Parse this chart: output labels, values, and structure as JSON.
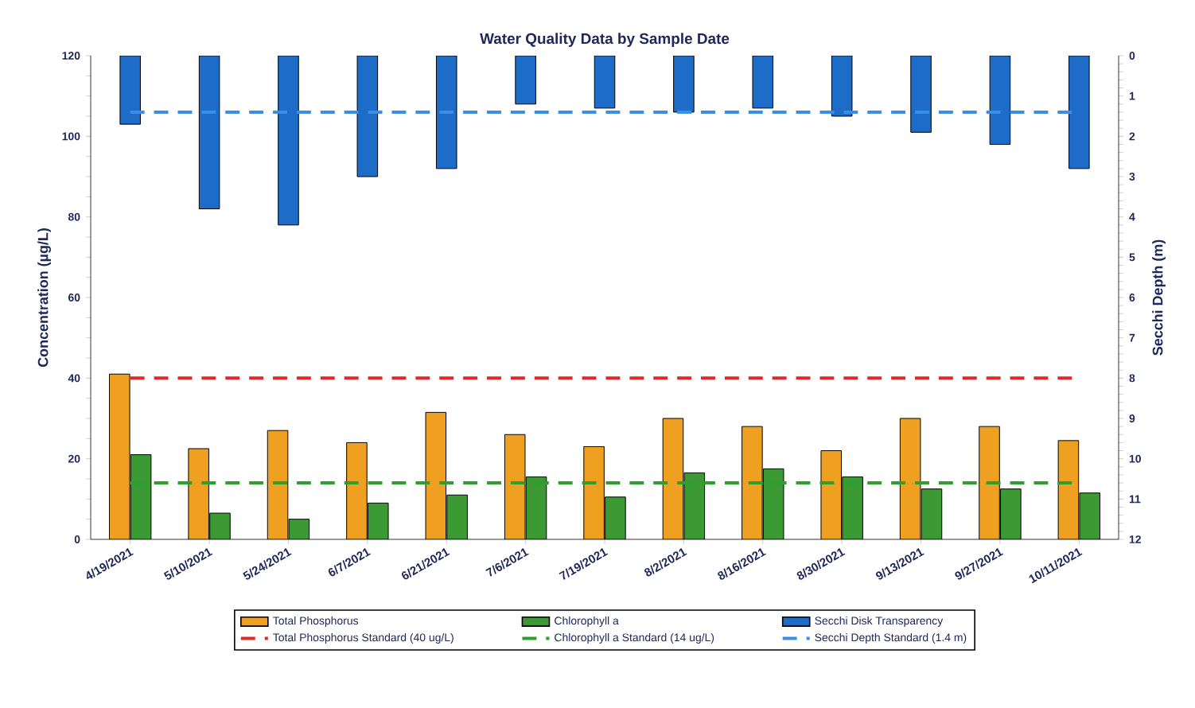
{
  "chart_data": {
    "type": "bar",
    "title": "Water Quality Data by Sample Date",
    "ylabel": "Concentration (µg/L)",
    "y2label": "Secchi Depth (m)",
    "categories": [
      "4/19/2021",
      "5/10/2021",
      "5/24/2021",
      "6/7/2021",
      "6/21/2021",
      "7/6/2021",
      "7/19/2021",
      "8/2/2021",
      "8/16/2021",
      "8/30/2021",
      "9/13/2021",
      "9/27/2021",
      "10/11/2021"
    ],
    "series": [
      {
        "name": "Total Phosphorus",
        "color": "#f0a020",
        "values": [
          41,
          22.5,
          27,
          24,
          31.5,
          26,
          23,
          30,
          28,
          22,
          30,
          28,
          24.5
        ]
      },
      {
        "name": "Chlorophyll a",
        "color": "#3c9a34",
        "values": [
          21,
          6.5,
          5,
          9,
          11,
          15.5,
          10.5,
          16.5,
          17.5,
          15.5,
          12.5,
          12.5,
          11.5
        ]
      },
      {
        "name": "Secchi Disk Transparency",
        "axis": "y2",
        "color": "#1c6cc8",
        "values": [
          1.7,
          3.8,
          4.2,
          3.0,
          2.8,
          1.2,
          1.3,
          1.4,
          1.3,
          1.5,
          1.9,
          2.2,
          2.8
        ]
      },
      {
        "name": "Total Phosphorus Standard (40 ug/L)",
        "type": "line",
        "line_style": "dashed",
        "color": "#e02828",
        "values": [
          40,
          40,
          40,
          40,
          40,
          40,
          40,
          40,
          40,
          40,
          40,
          40,
          40
        ]
      },
      {
        "name": "Chlorophyll a Standard (14 ug/L)",
        "type": "line",
        "line_style": "dashed",
        "color": "#2ca02c",
        "values": [
          14,
          14,
          14,
          14,
          14,
          14,
          14,
          14,
          14,
          14,
          14,
          14,
          14
        ]
      },
      {
        "name": "Secchi Depth Standard (1.4 m)",
        "type": "line",
        "line_style": "dashed",
        "axis": "y2",
        "color": "#3a8ee6",
        "values": [
          1.4,
          1.4,
          1.4,
          1.4,
          1.4,
          1.4,
          1.4,
          1.4,
          1.4,
          1.4,
          1.4,
          1.4,
          1.4
        ]
      }
    ],
    "ylim": [
      0,
      120
    ],
    "yticks": [
      0,
      20,
      40,
      60,
      80,
      100,
      120
    ],
    "y2lim": [
      12,
      0
    ],
    "y2ticks": [
      0,
      1,
      2,
      3,
      4,
      5,
      6,
      7,
      8,
      9,
      10,
      11,
      12
    ],
    "legend": "bottom"
  }
}
